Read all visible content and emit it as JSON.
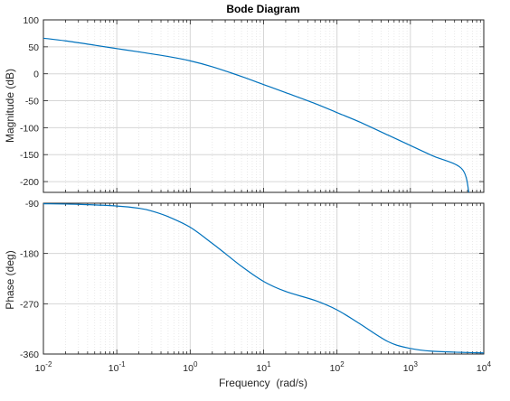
{
  "chart_data": {
    "type": "line",
    "title": "Bode Diagram",
    "xlabel": "Frequency  (rad/s)",
    "xscale": "log",
    "xlim": [
      0.01,
      10000
    ],
    "x_ticks": [
      0.01,
      0.1,
      1,
      10,
      100,
      1000,
      10000
    ],
    "x_tick_labels": [
      {
        "base": "10",
        "exp": "-2"
      },
      {
        "base": "10",
        "exp": "-1"
      },
      {
        "base": "10",
        "exp": "0"
      },
      {
        "base": "10",
        "exp": "1"
      },
      {
        "base": "10",
        "exp": "2"
      },
      {
        "base": "10",
        "exp": "3"
      },
      {
        "base": "10",
        "exp": "4"
      }
    ],
    "grid": true,
    "line_color": "#0072bd",
    "panels": [
      {
        "name": "magnitude",
        "ylabel": "Magnitude (dB)",
        "ylim": [
          -220,
          100
        ],
        "y_ticks": [
          100,
          50,
          0,
          -50,
          -100,
          -150,
          -200
        ],
        "y_tick_labels": [
          "100",
          "50",
          "0",
          "-50",
          "-100",
          "-150",
          "-200"
        ],
        "x": [
          0.01,
          0.02,
          0.05,
          0.1,
          0.2,
          0.5,
          1,
          2,
          5,
          10,
          20,
          50,
          100,
          200,
          500,
          1000,
          2000,
          5000,
          6300
        ],
        "y": [
          66,
          61,
          53,
          46.7,
          40.6,
          32,
          24,
          13,
          -5,
          -20,
          -35,
          -55,
          -72,
          -89,
          -114,
          -133,
          -152,
          -176,
          -222
        ]
      },
      {
        "name": "phase",
        "ylabel": "Phase (deg)",
        "ylim": [
          -360,
          -90
        ],
        "y_ticks": [
          -90,
          -180,
          -270,
          -360
        ],
        "y_tick_labels": [
          "-90",
          "-180",
          "-270",
          "-360"
        ],
        "x": [
          0.01,
          0.03,
          0.1,
          0.2,
          0.3,
          0.5,
          1,
          2,
          3,
          5,
          10,
          20,
          50,
          100,
          200,
          500,
          1000,
          2000,
          5000,
          10000
        ],
        "y": [
          -91,
          -92,
          -95,
          -99,
          -104,
          -114,
          -133,
          -162,
          -180,
          -203,
          -230,
          -248,
          -264,
          -281,
          -305,
          -338,
          -350,
          -355,
          -357,
          -358
        ]
      }
    ]
  }
}
